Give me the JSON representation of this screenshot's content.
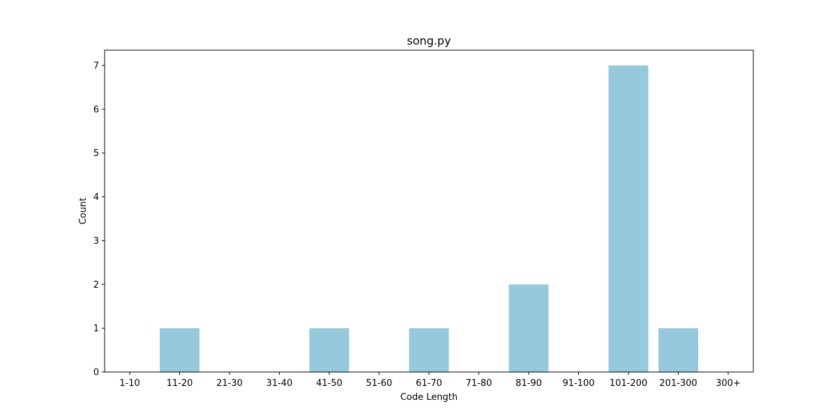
{
  "chart_data": {
    "type": "bar",
    "title": "song.py",
    "xlabel": "Code Length",
    "ylabel": "Count",
    "categories": [
      "1-10",
      "11-20",
      "21-30",
      "31-40",
      "41-50",
      "51-60",
      "61-70",
      "71-80",
      "81-90",
      "91-100",
      "101-200",
      "201-300",
      "300+"
    ],
    "values": [
      0,
      1,
      0,
      0,
      1,
      0,
      1,
      0,
      2,
      0,
      7,
      1,
      0
    ],
    "yticks": [
      0,
      1,
      2,
      3,
      4,
      5,
      6,
      7
    ],
    "ylim": [
      0,
      7.35
    ],
    "grid": false,
    "bar_color": "#96c9dc"
  }
}
